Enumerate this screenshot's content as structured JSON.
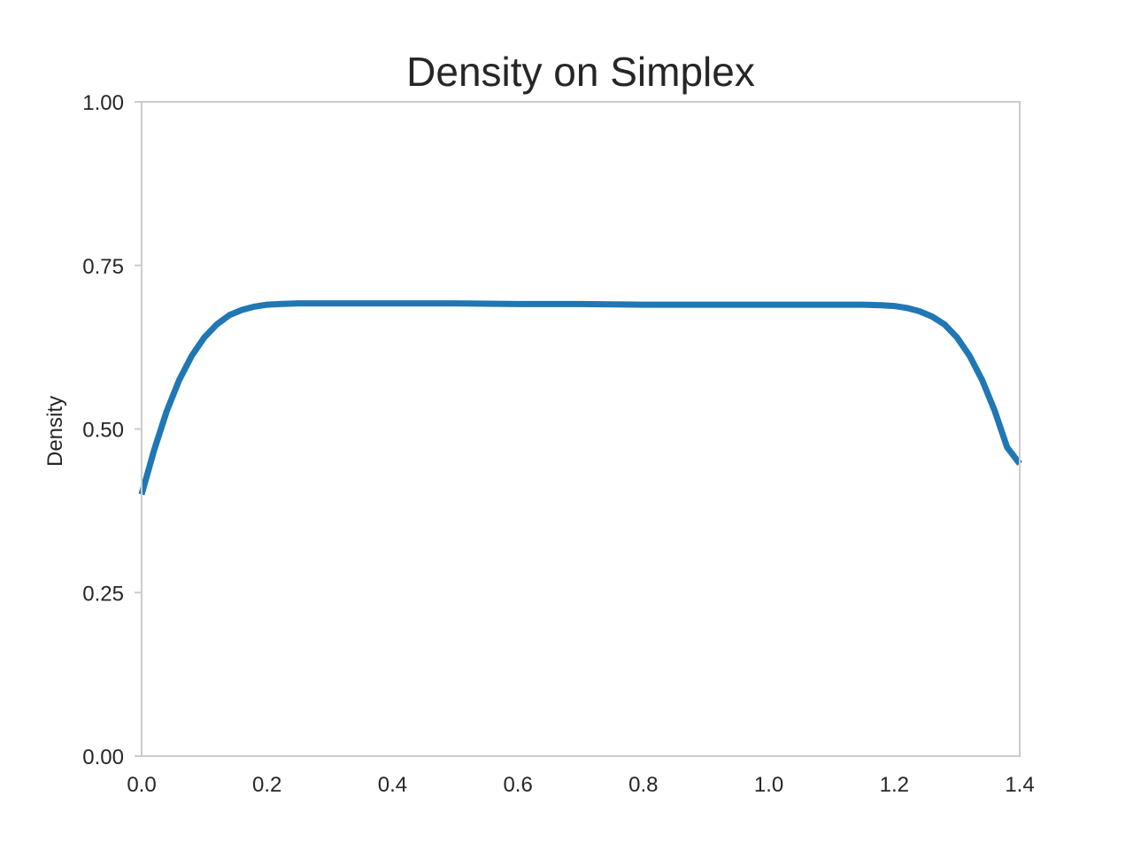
{
  "chart_data": {
    "type": "line",
    "title": "Density on Simplex",
    "xlabel": "",
    "ylabel": "Density",
    "xlim": [
      0.0,
      1.4
    ],
    "ylim": [
      0.0,
      1.0
    ],
    "xticks": [
      "0.0",
      "0.2",
      "0.4",
      "0.6",
      "0.8",
      "1.0",
      "1.2",
      "1.4"
    ],
    "yticks": [
      "0.00",
      "0.25",
      "0.50",
      "0.75",
      "1.00"
    ],
    "grid": false,
    "series": [
      {
        "color": "#1f77b4",
        "x": [
          0.0,
          0.02,
          0.04,
          0.06,
          0.08,
          0.1,
          0.12,
          0.14,
          0.16,
          0.18,
          0.2,
          0.22,
          0.25,
          0.3,
          0.4,
          0.5,
          0.6,
          0.7,
          0.8,
          0.9,
          1.0,
          1.1,
          1.15,
          1.18,
          1.2,
          1.22,
          1.24,
          1.26,
          1.28,
          1.3,
          1.32,
          1.34,
          1.36,
          1.38,
          1.4
        ],
        "y": [
          0.4,
          0.468,
          0.527,
          0.575,
          0.612,
          0.64,
          0.66,
          0.674,
          0.682,
          0.687,
          0.69,
          0.691,
          0.692,
          0.692,
          0.692,
          0.692,
          0.691,
          0.691,
          0.69,
          0.69,
          0.69,
          0.69,
          0.69,
          0.689,
          0.688,
          0.685,
          0.68,
          0.672,
          0.66,
          0.64,
          0.612,
          0.575,
          0.528,
          0.472,
          0.447
        ]
      }
    ]
  }
}
